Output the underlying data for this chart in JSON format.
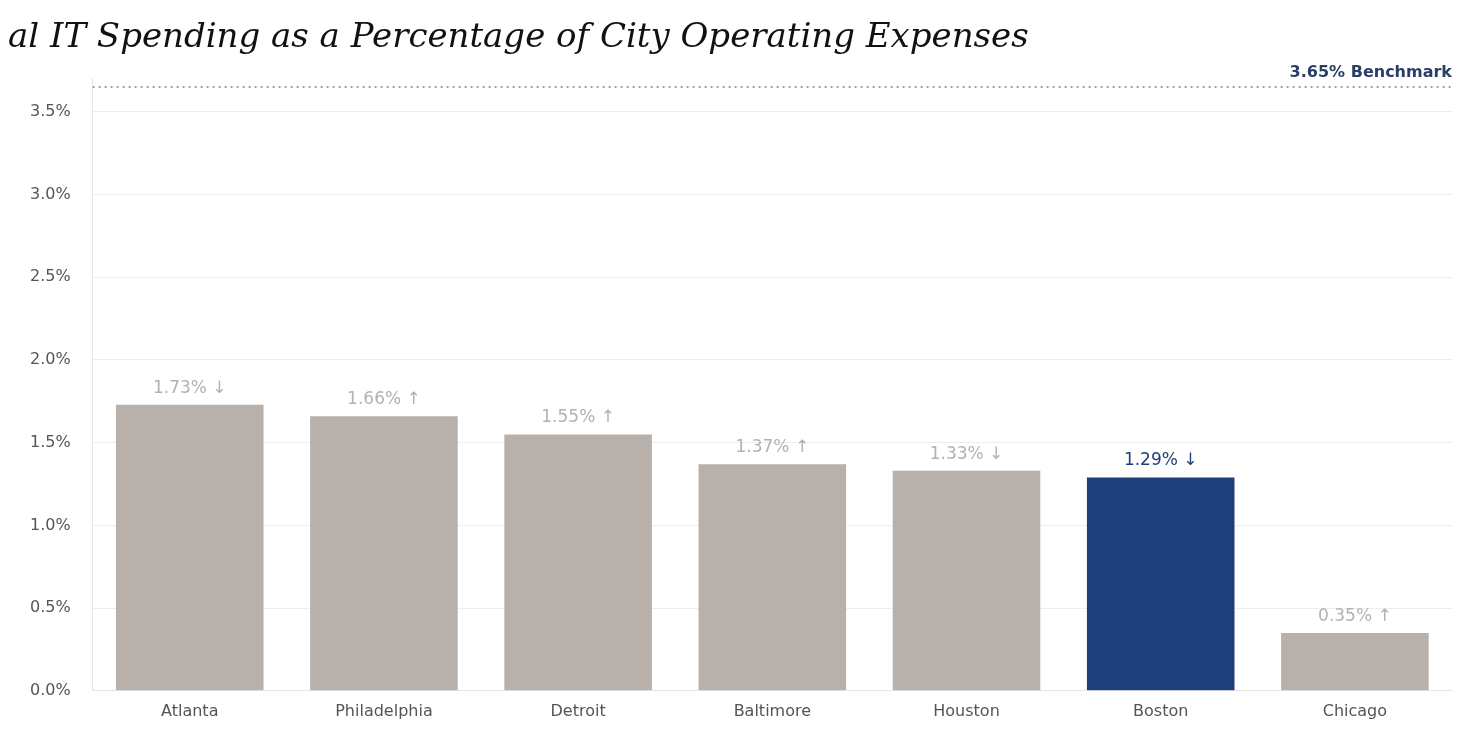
{
  "chart_data": {
    "type": "bar",
    "title": "al IT Spending as a Percentage of City Operating Expenses",
    "categories": [
      "Atlanta",
      "Philadelphia",
      "Detroit",
      "Baltimore",
      "Houston",
      "Boston",
      "Chicago"
    ],
    "values": [
      1.73,
      1.66,
      1.55,
      1.37,
      1.33,
      1.29,
      0.35
    ],
    "colors": [
      "#b8b0ab",
      "#b8b0ab",
      "#b8b0ab",
      "#b8b0ab",
      "#b8b0ab",
      "#1f3f7a",
      "#b8b0ab"
    ],
    "value_labels": [
      "1.73% ↓",
      "1.66% ↑",
      "1.55% ↑",
      "1.37% ↑",
      "1.33% ↓",
      "1.29% ↓",
      "0.35% ↑"
    ],
    "ylim": [
      0,
      3.7
    ],
    "yticks": [
      {
        "value": 0,
        "label": "0.0%"
      },
      {
        "value": 0.5,
        "label": "0.5%"
      },
      {
        "value": 1,
        "label": "1.0%"
      },
      {
        "value": 1.5,
        "label": "1.5%"
      },
      {
        "value": 2,
        "label": "2.0%"
      },
      {
        "value": 2.5,
        "label": "2.5%"
      },
      {
        "value": 3,
        "label": "3.0%"
      },
      {
        "value": 3.5,
        "label": "3.5%"
      }
    ],
    "grid": "y",
    "legend": false,
    "ref_lines": [
      {
        "axis": "y",
        "value": 3.65,
        "label": "3.65% Benchmark",
        "color": "#a0a0a0",
        "line_style": "dotted"
      }
    ]
  }
}
